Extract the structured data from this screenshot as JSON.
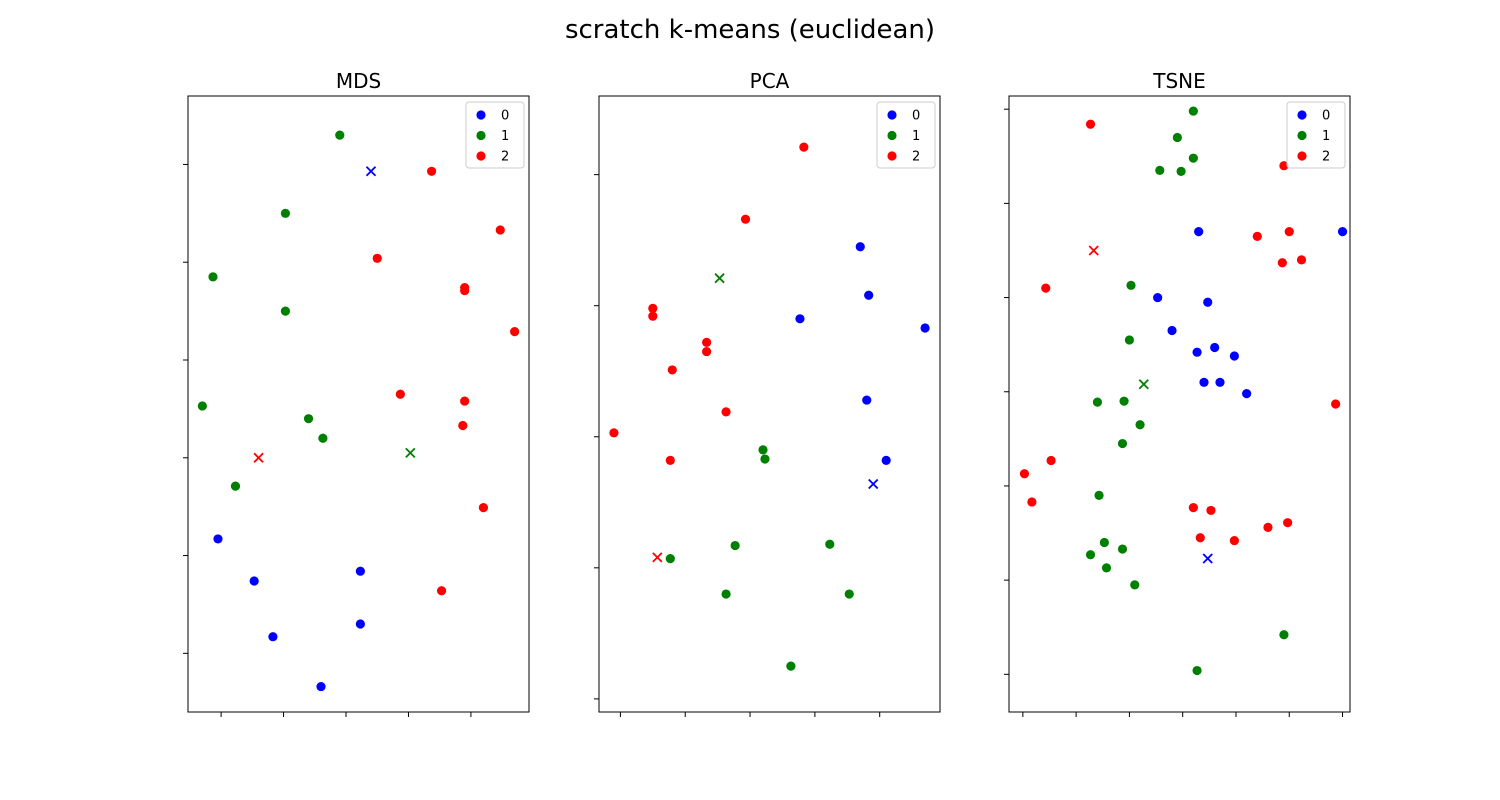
{
  "suptitle": "scratch k-means (euclidean)",
  "colors": {
    "0": "#0000ff",
    "1": "#008000",
    "2": "#ff0000"
  },
  "legend": {
    "placement": "top-right",
    "labels": [
      "0",
      "1",
      "2"
    ]
  },
  "chart_data": [
    {
      "type": "scatter",
      "title": "MDS",
      "xlabel": "",
      "ylabel": "",
      "tick_labels_shown": false,
      "grid": false,
      "xlim": [
        -0.53,
        4.93
      ],
      "ylim": [
        -0.6,
        5.7
      ],
      "xticks": [
        0,
        1,
        2,
        3,
        4
      ],
      "yticks": [
        0,
        1,
        2,
        3,
        4,
        5
      ],
      "series": [
        {
          "name": "0",
          "points": [
            [
              -0.05,
              1.17
            ],
            [
              0.53,
              0.74
            ],
            [
              0.83,
              0.17
            ],
            [
              1.6,
              -0.34
            ],
            [
              2.23,
              0.84
            ],
            [
              2.23,
              0.3
            ]
          ]
        },
        {
          "name": "1",
          "points": [
            [
              1.03,
              4.5
            ],
            [
              -0.13,
              3.85
            ],
            [
              1.03,
              3.5
            ],
            [
              1.9,
              5.3
            ],
            [
              -0.3,
              2.53
            ],
            [
              1.4,
              2.4
            ],
            [
              1.63,
              2.2
            ],
            [
              0.23,
              1.71
            ]
          ]
        },
        {
          "name": "2",
          "points": [
            [
              3.37,
              4.93
            ],
            [
              2.5,
              4.04
            ],
            [
              4.47,
              4.33
            ],
            [
              3.9,
              3.74
            ],
            [
              3.9,
              3.71
            ],
            [
              4.7,
              3.29
            ],
            [
              2.87,
              2.65
            ],
            [
              3.9,
              2.58
            ],
            [
              3.87,
              2.33
            ],
            [
              4.2,
              1.49
            ],
            [
              3.53,
              0.64
            ]
          ]
        }
      ],
      "centroids": [
        {
          "name": "0",
          "point": [
            2.4,
            4.93
          ]
        },
        {
          "name": "1",
          "point": [
            3.03,
            2.05
          ]
        },
        {
          "name": "2",
          "point": [
            0.6,
            2.0
          ]
        }
      ]
    },
    {
      "type": "scatter",
      "title": "PCA",
      "xlabel": "",
      "ylabel": "",
      "tick_labels_shown": false,
      "grid": false,
      "xlim": [
        -0.33,
        4.93
      ],
      "ylim": [
        -0.1,
        4.6
      ],
      "xticks": [
        0,
        1,
        2,
        3,
        4
      ],
      "yticks": [
        0,
        1,
        2,
        3,
        4
      ],
      "series": [
        {
          "name": "0",
          "points": [
            [
              3.7,
              3.45
            ],
            [
              3.83,
              3.08
            ],
            [
              2.77,
              2.9
            ],
            [
              4.7,
              2.83
            ],
            [
              3.8,
              2.28
            ],
            [
              4.1,
              1.82
            ]
          ]
        },
        {
          "name": "1",
          "points": [
            [
              2.2,
              1.9
            ],
            [
              2.23,
              1.83
            ],
            [
              0.77,
              1.07
            ],
            [
              1.77,
              1.17
            ],
            [
              3.23,
              1.18
            ],
            [
              1.63,
              0.8
            ],
            [
              3.53,
              0.8
            ],
            [
              2.63,
              0.25
            ]
          ]
        },
        {
          "name": "2",
          "points": [
            [
              2.83,
              4.21
            ],
            [
              1.93,
              3.66
            ],
            [
              0.5,
              2.98
            ],
            [
              0.5,
              2.92
            ],
            [
              1.33,
              2.72
            ],
            [
              1.33,
              2.65
            ],
            [
              0.8,
              2.51
            ],
            [
              1.63,
              2.19
            ],
            [
              -0.1,
              2.03
            ],
            [
              0.77,
              1.82
            ]
          ]
        }
      ],
      "centroids": [
        {
          "name": "0",
          "point": [
            3.9,
            1.64
          ]
        },
        {
          "name": "1",
          "point": [
            1.53,
            3.21
          ]
        },
        {
          "name": "2",
          "point": [
            0.57,
            1.08
          ]
        }
      ]
    },
    {
      "type": "scatter",
      "title": "TSNE",
      "xlabel": "",
      "ylabel": "",
      "tick_labels_shown": false,
      "grid": false,
      "xlim": [
        -0.26,
        6.14
      ],
      "ylim": [
        -0.4,
        6.14
      ],
      "xticks": [
        0,
        1,
        2,
        3,
        4,
        5,
        6
      ],
      "yticks": [
        0,
        1,
        2,
        3,
        4,
        5,
        6
      ],
      "series": [
        {
          "name": "0",
          "points": [
            [
              3.3,
              4.7
            ],
            [
              6.0,
              4.7
            ],
            [
              2.53,
              4.0
            ],
            [
              3.47,
              3.95
            ],
            [
              2.8,
              3.65
            ],
            [
              3.27,
              3.42
            ],
            [
              3.6,
              3.47
            ],
            [
              3.97,
              3.38
            ],
            [
              3.4,
              3.1
            ],
            [
              3.7,
              3.1
            ],
            [
              4.2,
              2.98
            ]
          ]
        },
        {
          "name": "1",
          "points": [
            [
              3.2,
              5.98
            ],
            [
              2.9,
              5.7
            ],
            [
              3.2,
              5.48
            ],
            [
              2.57,
              5.35
            ],
            [
              2.97,
              5.34
            ],
            [
              2.03,
              4.13
            ],
            [
              2.0,
              3.55
            ],
            [
              1.4,
              2.89
            ],
            [
              1.9,
              2.9
            ],
            [
              2.2,
              2.65
            ],
            [
              1.87,
              2.45
            ],
            [
              1.43,
              1.9
            ],
            [
              1.53,
              1.4
            ],
            [
              1.27,
              1.27
            ],
            [
              1.87,
              1.33
            ],
            [
              1.57,
              1.13
            ],
            [
              2.1,
              0.95
            ],
            [
              4.9,
              0.42
            ],
            [
              3.27,
              0.04
            ]
          ]
        },
        {
          "name": "2",
          "points": [
            [
              1.27,
              5.84
            ],
            [
              4.9,
              5.4
            ],
            [
              4.4,
              4.65
            ],
            [
              5.0,
              4.7
            ],
            [
              4.87,
              4.37
            ],
            [
              5.23,
              4.4
            ],
            [
              0.43,
              4.1
            ],
            [
              5.87,
              2.87
            ],
            [
              0.53,
              2.27
            ],
            [
              0.03,
              2.13
            ],
            [
              0.17,
              1.83
            ],
            [
              3.2,
              1.77
            ],
            [
              3.53,
              1.74
            ],
            [
              3.33,
              1.45
            ],
            [
              3.97,
              1.42
            ],
            [
              4.6,
              1.56
            ],
            [
              4.97,
              1.61
            ]
          ]
        }
      ],
      "centroids": [
        {
          "name": "0",
          "point": [
            3.47,
            1.23
          ]
        },
        {
          "name": "1",
          "point": [
            2.27,
            3.08
          ]
        },
        {
          "name": "2",
          "point": [
            1.33,
            4.5
          ]
        }
      ]
    }
  ]
}
